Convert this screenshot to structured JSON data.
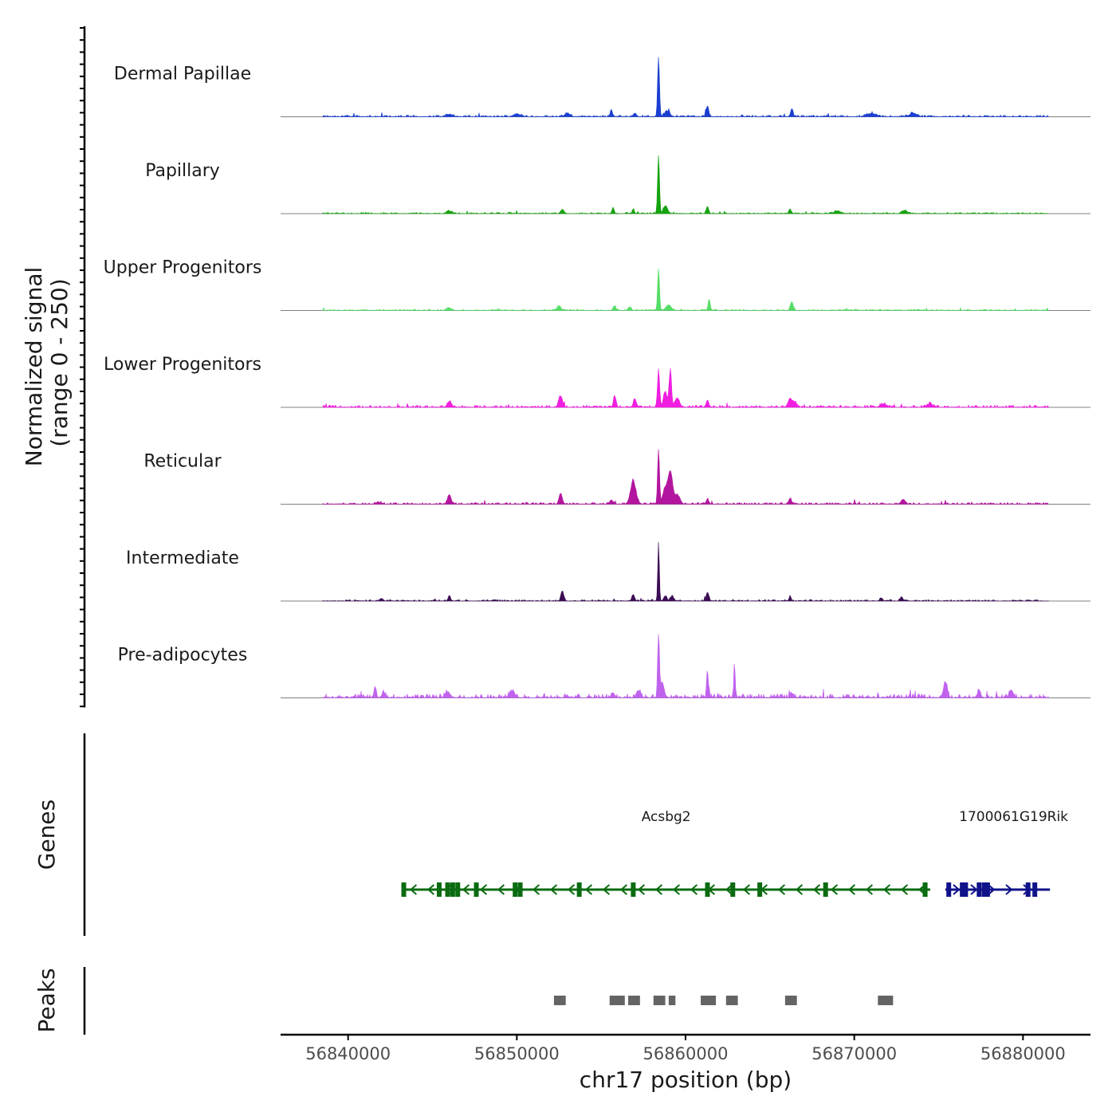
{
  "chart_data": {
    "type": "area",
    "title": "",
    "chromosome": "chr17",
    "xlabel": "chr17 position (bp)",
    "xlim": [
      56836000,
      56884000
    ],
    "x_ticks": [
      56840000,
      56850000,
      56860000,
      56870000,
      56880000
    ],
    "ylabel_line1": "Normalized signal",
    "ylabel_line2": "(range 0 - 250)",
    "ylim": [
      0,
      250
    ],
    "signal_range_bp": [
      56838500,
      56881500
    ],
    "series": [
      {
        "name": "Dermal Papillae",
        "color": "#1a3fd1",
        "noise": 7,
        "peaks": [
          [
            56855600,
            28,
            60
          ],
          [
            56857000,
            14,
            80
          ],
          [
            56858400,
            235,
            55
          ],
          [
            56858900,
            22,
            150
          ],
          [
            56861300,
            42,
            70
          ],
          [
            56866300,
            32,
            70
          ],
          [
            56853000,
            12,
            150
          ],
          [
            56850000,
            10,
            200
          ],
          [
            56846000,
            9,
            200
          ],
          [
            56871000,
            12,
            250
          ],
          [
            56873500,
            14,
            200
          ]
        ]
      },
      {
        "name": "Papillary",
        "color": "#16a30f",
        "noise": 5,
        "peaks": [
          [
            56852700,
            14,
            100
          ],
          [
            56855700,
            24,
            60
          ],
          [
            56856900,
            18,
            60
          ],
          [
            56858400,
            230,
            55
          ],
          [
            56858800,
            30,
            120
          ],
          [
            56861300,
            28,
            70
          ],
          [
            56866200,
            14,
            80
          ],
          [
            56846000,
            10,
            150
          ],
          [
            56869000,
            10,
            200
          ],
          [
            56873000,
            12,
            150
          ]
        ]
      },
      {
        "name": "Upper Progenitors",
        "color": "#55dd66",
        "noise": 5,
        "peaks": [
          [
            56852500,
            16,
            120
          ],
          [
            56855800,
            18,
            80
          ],
          [
            56856700,
            14,
            80
          ],
          [
            56858400,
            165,
            55
          ],
          [
            56859000,
            22,
            150
          ],
          [
            56861400,
            44,
            60
          ],
          [
            56866300,
            34,
            80
          ],
          [
            56846000,
            9,
            150
          ]
        ]
      },
      {
        "name": "Lower Progenitors",
        "color": "#f01ee0",
        "noise": 9,
        "peaks": [
          [
            56846000,
            22,
            120
          ],
          [
            56852600,
            44,
            110
          ],
          [
            56855800,
            45,
            70
          ],
          [
            56857000,
            30,
            90
          ],
          [
            56858400,
            148,
            60
          ],
          [
            56858800,
            60,
            110
          ],
          [
            56859100,
            150,
            65
          ],
          [
            56859500,
            35,
            140
          ],
          [
            56861300,
            28,
            70
          ],
          [
            56866200,
            35,
            120
          ],
          [
            56866500,
            20,
            100
          ],
          [
            56871700,
            12,
            150
          ],
          [
            56874500,
            14,
            150
          ]
        ]
      },
      {
        "name": "Reticular",
        "color": "#b3159e",
        "noise": 7,
        "peaks": [
          [
            56846000,
            38,
            100
          ],
          [
            56852600,
            42,
            90
          ],
          [
            56855600,
            16,
            90
          ],
          [
            56856900,
            88,
            160
          ],
          [
            56858400,
            215,
            55
          ],
          [
            56858800,
            60,
            150
          ],
          [
            56859100,
            120,
            130
          ],
          [
            56859500,
            35,
            160
          ],
          [
            56861300,
            18,
            80
          ],
          [
            56866200,
            22,
            80
          ],
          [
            56872900,
            18,
            120
          ],
          [
            56841800,
            8,
            150
          ]
        ]
      },
      {
        "name": "Intermediate",
        "color": "#3c0d54",
        "noise": 6,
        "peaks": [
          [
            56846000,
            20,
            70
          ],
          [
            56852700,
            38,
            80
          ],
          [
            56856900,
            22,
            80
          ],
          [
            56858400,
            232,
            45
          ],
          [
            56858800,
            20,
            90
          ],
          [
            56859200,
            18,
            90
          ],
          [
            56861300,
            34,
            80
          ],
          [
            56866200,
            18,
            60
          ],
          [
            56872800,
            16,
            80
          ],
          [
            56871600,
            12,
            80
          ],
          [
            56842000,
            10,
            80
          ]
        ]
      },
      {
        "name": "Pre-adipocytes",
        "color": "#c062ee",
        "noise": 16,
        "peaks": [
          [
            56841600,
            38,
            70
          ],
          [
            56842100,
            25,
            80
          ],
          [
            56858400,
            250,
            50
          ],
          [
            56858600,
            60,
            120
          ],
          [
            56857200,
            28,
            120
          ],
          [
            56861300,
            102,
            50
          ],
          [
            56862900,
            134,
            40
          ],
          [
            56875400,
            60,
            110
          ],
          [
            56877400,
            30,
            90
          ],
          [
            56879300,
            30,
            100
          ],
          [
            56849700,
            22,
            150
          ],
          [
            56845900,
            22,
            150
          ],
          [
            56855700,
            20,
            90
          ],
          [
            56866300,
            18,
            80
          ]
        ]
      }
    ],
    "genes_title": "Genes",
    "genes": [
      {
        "name": "Acsbg2",
        "start": 56843200,
        "end": 56874500,
        "strand": "-",
        "color": "#0a6b10",
        "exons": [
          56843300,
          56845400,
          56845900,
          56846200,
          56846500,
          56847600,
          56849900,
          56850200,
          56853700,
          56856900,
          56861300,
          56862800,
          56864400,
          56868300,
          56874200
        ]
      },
      {
        "name": "1700061G19Rik",
        "start": 56875400,
        "end": 56881600,
        "strand": "+",
        "color": "#10128a",
        "exons": [
          56875600,
          56876400,
          56876600,
          56877400,
          56877700,
          56877900,
          56880300,
          56880700
        ]
      }
    ],
    "peaks_title": "Peaks",
    "peaks": [
      [
        56852200,
        56852900
      ],
      [
        56855500,
        56856400
      ],
      [
        56856600,
        56857300
      ],
      [
        56858100,
        56858800
      ],
      [
        56859000,
        56859400
      ],
      [
        56860900,
        56861800
      ],
      [
        56862400,
        56863100
      ],
      [
        56865900,
        56866600
      ],
      [
        56871400,
        56872300
      ]
    ],
    "colors": {
      "axis": "#000000",
      "baseline": "#808080",
      "peak_fill": "#646464"
    }
  }
}
